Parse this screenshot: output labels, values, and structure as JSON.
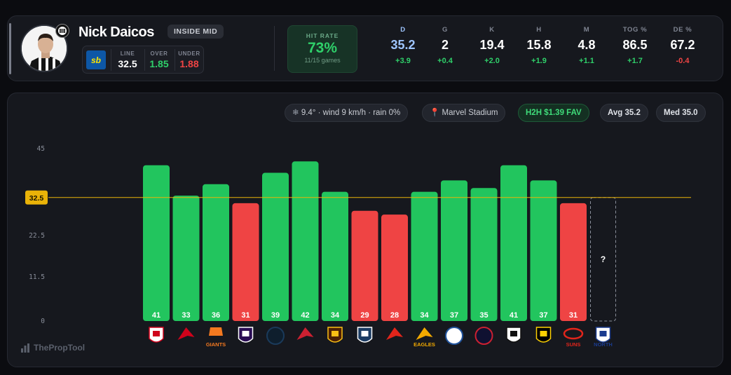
{
  "player": {
    "name": "Nick Daicos",
    "position": "INSIDE MID"
  },
  "line": {
    "bookmaker_logo": "sb",
    "line_label": "LINE",
    "line_value": "32.5",
    "over_label": "OVER",
    "over_value": "1.85",
    "under_label": "UNDER",
    "under_value": "1.88"
  },
  "hit_rate": {
    "label": "HIT RATE",
    "value": "73%",
    "sub": "11/15 games"
  },
  "stats": [
    {
      "label": "D",
      "value": "35.2",
      "delta": "+3.9"
    },
    {
      "label": "G",
      "value": "2",
      "delta": "+0.4"
    },
    {
      "label": "K",
      "value": "19.4",
      "delta": "+2.0"
    },
    {
      "label": "H",
      "value": "15.8",
      "delta": "+1.9"
    },
    {
      "label": "M",
      "value": "4.8",
      "delta": "+1.1"
    },
    {
      "label": "TOG %",
      "value": "86.5",
      "delta": "+1.7"
    },
    {
      "label": "DE %",
      "value": "67.2",
      "delta": "-0.4"
    }
  ],
  "pills": {
    "weather": "9.4° · wind 9 km/h · rain 0%",
    "venue": "Marvel Stadium",
    "h2h": "H2H $1.39 FAV",
    "avg": "Avg 35.2",
    "med": "Med 35.0"
  },
  "colors": {
    "over": "#22c55e",
    "under": "#ef4444",
    "line": "#eab308",
    "accent_stat": "#9ec5ff"
  },
  "chart_data": {
    "type": "bar",
    "yticks": [
      "45",
      "32.5",
      "22.5",
      "11.5",
      "0"
    ],
    "ylim": [
      0,
      45
    ],
    "line_value": 32.5,
    "line_label": "32.5",
    "categories": [
      "ST KILDA",
      "ADELAIDE",
      "GIANTS",
      "FREMANTLE",
      "CARLTON",
      "ESSENDON",
      "HAWTHORN",
      "GEELONG",
      "SYDNEY",
      "EAGLES",
      "BULLDOGS",
      "MELBOURNE",
      "PORT",
      "RICHMOND",
      "SUNS",
      "NORTH"
    ],
    "values": [
      41,
      33,
      36,
      31,
      39,
      42,
      34,
      29,
      28,
      34,
      37,
      35,
      41,
      37,
      31,
      null
    ],
    "next_label": "?"
  },
  "brand": "ThePropTool"
}
